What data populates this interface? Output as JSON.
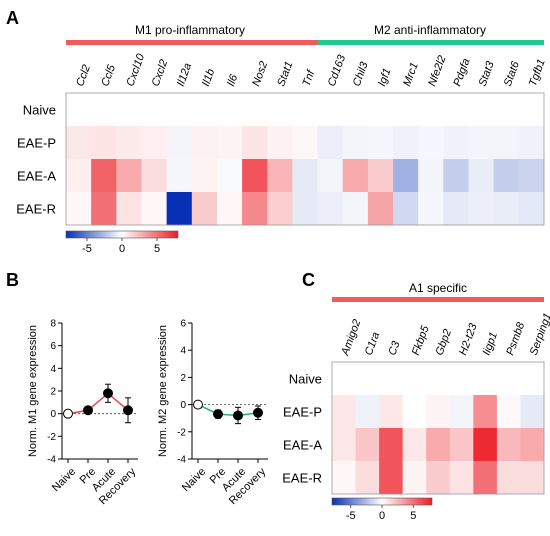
{
  "figure": {
    "panels": [
      {
        "label": "A",
        "group_headers": [
          {
            "text": "M1 pro-inflammatory",
            "color": "#f25b5b"
          },
          {
            "text": "M2 anti-inflammatory",
            "color": "#22c98f"
          }
        ]
      },
      {
        "label": "B"
      },
      {
        "label": "C",
        "group_headers": [
          {
            "text": "A1 specific",
            "color": "#f25b5b"
          }
        ]
      }
    ]
  },
  "chart_data": [
    {
      "type": "heatmap",
      "panel": "A",
      "columns": [
        "Ccl2",
        "Ccl5",
        "Cxcl10",
        "Cxcl2",
        "Il12a",
        "Il1b",
        "Il6",
        "Nos2",
        "Stat1",
        "Tnf",
        "Cd163",
        "Chil3",
        "Igf1",
        "Mrc1",
        "Nfe2l2",
        "Pdgfa",
        "Stat3",
        "Stat6",
        "Tgfb1"
      ],
      "rows": [
        "Naive",
        "EAE-P",
        "EAE-A",
        "EAE-R"
      ],
      "values": [
        [
          0,
          0,
          0,
          0,
          0,
          0,
          0,
          0,
          0,
          0,
          0,
          0,
          0,
          0,
          0,
          0,
          0,
          0,
          0
        ],
        [
          0.8,
          0.9,
          0.7,
          0.6,
          -0.4,
          0.5,
          0.4,
          0.9,
          0.5,
          0.3,
          -0.6,
          -0.4,
          -0.3,
          -0.5,
          -0.3,
          -0.5,
          -0.4,
          -0.4,
          -0.5
        ],
        [
          0.6,
          5.5,
          3.0,
          1.2,
          -0.3,
          0.4,
          -0.2,
          6.0,
          2.6,
          -0.8,
          -0.4,
          3.0,
          1.8,
          -3.0,
          -0.4,
          -1.9,
          -0.7,
          -1.9,
          -1.7
        ],
        [
          0.3,
          5.0,
          1.0,
          0.3,
          -8.0,
          1.8,
          0.3,
          4.2,
          1.7,
          -0.8,
          -0.6,
          -0.4,
          3.2,
          -1.5,
          -0.3,
          -0.8,
          -0.6,
          -0.7,
          -0.9
        ]
      ],
      "colorbar": {
        "ticks": [
          -5,
          0,
          5
        ],
        "range": [
          -8,
          8
        ]
      }
    },
    {
      "type": "line",
      "panel": "B",
      "ylabel": "Norm. M1 gene expression",
      "categories": [
        "Naive",
        "Pre",
        "Acute",
        "Recovery"
      ],
      "values": [
        0,
        0.3,
        1.8,
        0.3
      ],
      "errors": [
        0,
        0.2,
        0.8,
        1.1
      ],
      "ylim": [
        -4,
        8
      ],
      "yticks": [
        -4,
        -2,
        0,
        2,
        4,
        6,
        8
      ],
      "line_color": "#e8423f"
    },
    {
      "type": "line",
      "panel": "B",
      "ylabel": "Norm. M2 gene expression",
      "categories": [
        "Naive",
        "Pre",
        "Acute",
        "Recovery"
      ],
      "values": [
        0,
        -0.7,
        -0.8,
        -0.6
      ],
      "errors": [
        0,
        0.3,
        0.6,
        0.5
      ],
      "ylim": [
        -4,
        6
      ],
      "yticks": [
        -4,
        -2,
        0,
        2,
        4,
        6
      ],
      "line_color": "#1fae82"
    },
    {
      "type": "heatmap",
      "panel": "C",
      "columns": [
        "Amigo2",
        "C1ra",
        "C3",
        "Fkbp5",
        "Gbp2",
        "H2-t23",
        "Iigp1",
        "Psmb8",
        "Serping1"
      ],
      "rows": [
        "Naive",
        "EAE-P",
        "EAE-A",
        "EAE-R"
      ],
      "values": [
        [
          0,
          0,
          0,
          0,
          0,
          0,
          0,
          0,
          0
        ],
        [
          0.8,
          -0.5,
          0.8,
          0,
          0.4,
          -0.4,
          4.0,
          0.2,
          -0.8
        ],
        [
          0.8,
          2.0,
          6.0,
          0.8,
          3.0,
          2.0,
          7.5,
          2.5,
          3.0
        ],
        [
          0.3,
          1.2,
          6.0,
          0.4,
          1.8,
          1.0,
          5.0,
          1.2,
          1.2
        ]
      ],
      "colorbar": {
        "ticks": [
          -5,
          0,
          5
        ],
        "range": [
          -8,
          8
        ]
      }
    }
  ]
}
